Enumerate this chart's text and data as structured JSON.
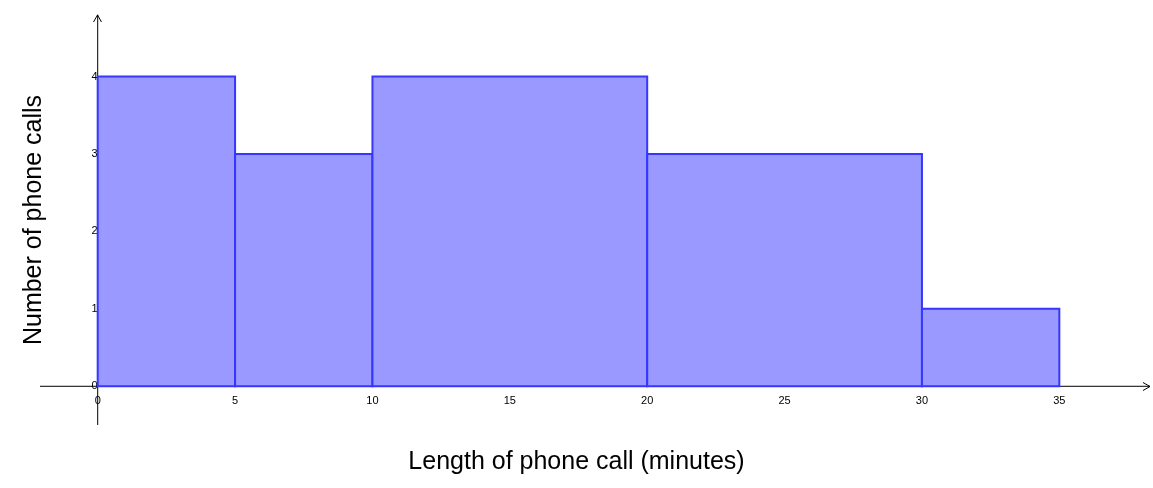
{
  "chart_data": {
    "type": "histogram",
    "xlabel": "Length of phone call (minutes)",
    "ylabel": "Number of phone calls",
    "bins": [
      0,
      5,
      10,
      20,
      30,
      35
    ],
    "values": [
      4,
      3,
      4,
      3,
      1
    ],
    "color": "#9999ff",
    "xlim": [
      -2.1,
      38.3
    ],
    "ylim": [
      -0.5,
      4.8
    ],
    "xticks": [
      0,
      5,
      10,
      15,
      20,
      25,
      30,
      35
    ],
    "yticks": [
      0,
      1,
      2,
      3,
      4
    ],
    "grid": false,
    "legend": false
  }
}
